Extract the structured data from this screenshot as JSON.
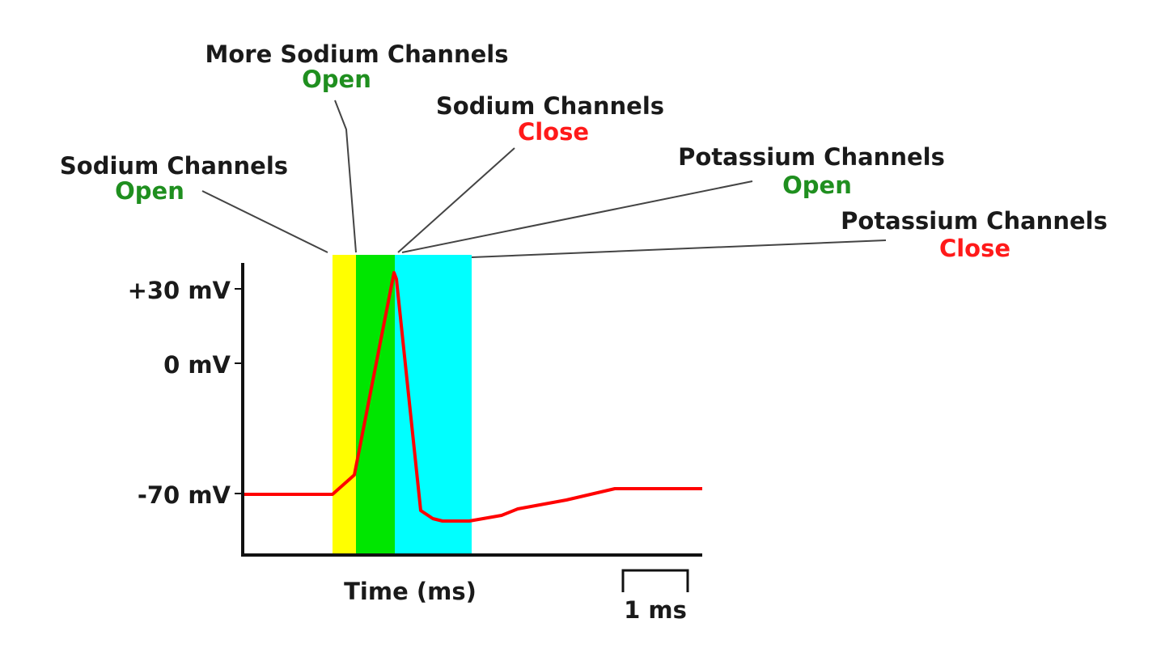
{
  "annotations": [
    {
      "label": "Sodium Channels",
      "state": "Open"
    },
    {
      "label": "More Sodium Channels",
      "state": "Open"
    },
    {
      "label": "Sodium Channels",
      "state": "Close"
    },
    {
      "label": "Potassium Channels",
      "state": "Open"
    },
    {
      "label": "Potassium Channels",
      "state": "Close"
    }
  ],
  "y_axis": {
    "ticks": [
      "+30 mV",
      "0 mV",
      "-70 mV"
    ]
  },
  "x_axis": {
    "label": "Time (ms)"
  },
  "scale_bar": {
    "label": "1 ms"
  },
  "colors": {
    "trace": "#ff0000",
    "band_sodium_open": "#ffff00",
    "band_more_sodium_open": "#00e600",
    "band_potassium_open": "#00ffff",
    "open_text": "#1f8f1f",
    "close_text": "#ff1a1a"
  }
}
